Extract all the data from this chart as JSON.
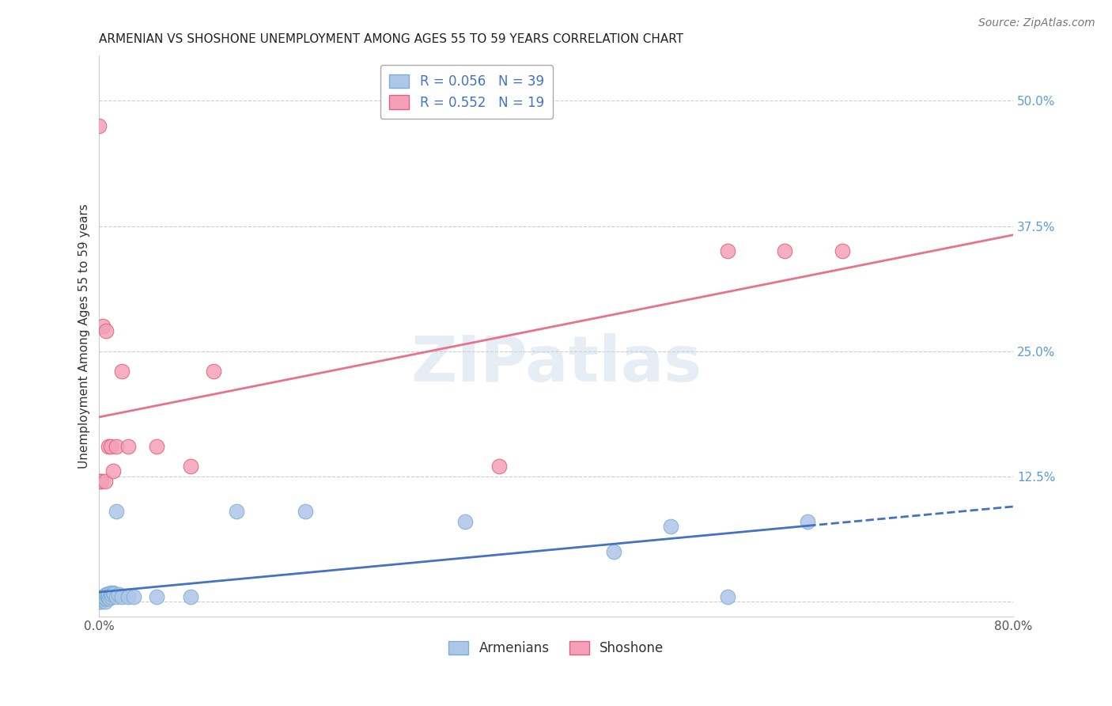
{
  "title": "ARMENIAN VS SHOSHONE UNEMPLOYMENT AMONG AGES 55 TO 59 YEARS CORRELATION CHART",
  "source": "Source: ZipAtlas.com",
  "ylabel": "Unemployment Among Ages 55 to 59 years",
  "xlim": [
    0.0,
    0.8
  ],
  "ylim": [
    -0.015,
    0.545
  ],
  "xticks": [
    0.0,
    0.1,
    0.2,
    0.3,
    0.4,
    0.5,
    0.6,
    0.7,
    0.8
  ],
  "xticklabels": [
    "0.0%",
    "",
    "",
    "",
    "",
    "",
    "",
    "",
    "80.0%"
  ],
  "yticks": [
    0.0,
    0.125,
    0.25,
    0.375,
    0.5
  ],
  "yticklabels": [
    "",
    "12.5%",
    "25.0%",
    "37.5%",
    "50.0%"
  ],
  "ytick_color": "#5b9bd5",
  "xtick_color": "#555555",
  "grid_color": "#cccccc",
  "background_color": "#ffffff",
  "armenian_x": [
    0.0,
    0.0,
    0.0,
    0.0,
    0.0,
    0.002,
    0.002,
    0.003,
    0.003,
    0.004,
    0.005,
    0.005,
    0.006,
    0.006,
    0.007,
    0.007,
    0.008,
    0.008,
    0.009,
    0.01,
    0.01,
    0.011,
    0.012,
    0.013,
    0.015,
    0.015,
    0.017,
    0.02,
    0.025,
    0.03,
    0.05,
    0.08,
    0.12,
    0.18,
    0.32,
    0.45,
    0.5,
    0.55,
    0.62
  ],
  "armenian_y": [
    0.0,
    0.0,
    0.002,
    0.003,
    0.004,
    0.0,
    0.002,
    0.002,
    0.005,
    0.005,
    0.0,
    0.003,
    0.003,
    0.007,
    0.005,
    0.007,
    0.005,
    0.008,
    0.003,
    0.005,
    0.009,
    0.007,
    0.009,
    0.008,
    0.09,
    0.005,
    0.007,
    0.005,
    0.005,
    0.005,
    0.005,
    0.005,
    0.09,
    0.09,
    0.08,
    0.05,
    0.075,
    0.005,
    0.08
  ],
  "armenian_color": "#aec6e8",
  "armenian_edge_color": "#7bafd4",
  "armenian_label": "Armenians",
  "armenian_R": 0.056,
  "armenian_N": 39,
  "shoshone_x": [
    0.0,
    0.001,
    0.002,
    0.003,
    0.005,
    0.006,
    0.008,
    0.01,
    0.012,
    0.015,
    0.02,
    0.025,
    0.05,
    0.08,
    0.1,
    0.35,
    0.55,
    0.6,
    0.65
  ],
  "shoshone_y": [
    0.475,
    0.12,
    0.12,
    0.275,
    0.12,
    0.27,
    0.155,
    0.155,
    0.13,
    0.155,
    0.23,
    0.155,
    0.155,
    0.135,
    0.23,
    0.135,
    0.35,
    0.35,
    0.35
  ],
  "shoshone_color": "#f4a0b8",
  "shoshone_edge_color": "#e0607e",
  "shoshone_label": "Shoshone",
  "shoshone_R": 0.552,
  "shoshone_N": 19,
  "armenian_line_color": "#4472C4",
  "shoshone_line_color": "#e8728a",
  "title_fontsize": 11,
  "axis_label_fontsize": 11,
  "tick_fontsize": 11,
  "legend_fontsize": 12,
  "source_fontsize": 10
}
